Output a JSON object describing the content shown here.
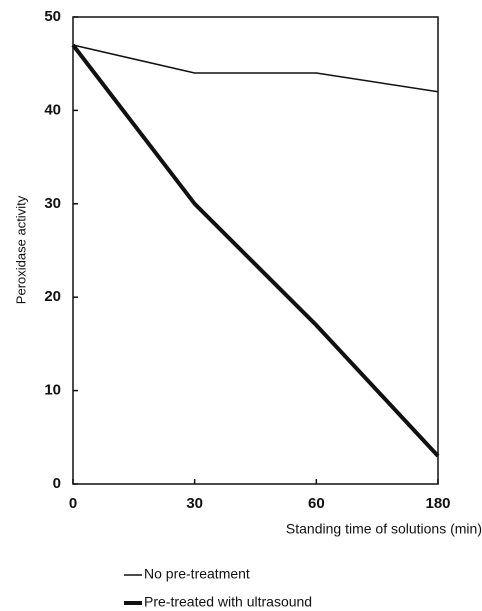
{
  "chart_data": {
    "type": "line",
    "y_label": "Peroxidase activity",
    "x_label": "Standing time of solutions (min)",
    "categories": [
      "0",
      "30",
      "60",
      "180"
    ],
    "series": [
      {
        "name": "No pre-treatment",
        "color": "#111111",
        "line_width": 1.5,
        "values": [
          47,
          44,
          44,
          42
        ]
      },
      {
        "name": "Pre-treated with ultrasound",
        "color": "#111111",
        "line_width": 4,
        "values": [
          47,
          30,
          17,
          3
        ]
      }
    ],
    "ylim": [
      0,
      50
    ],
    "yticks": [
      0,
      10,
      20,
      30,
      40,
      50
    ]
  }
}
